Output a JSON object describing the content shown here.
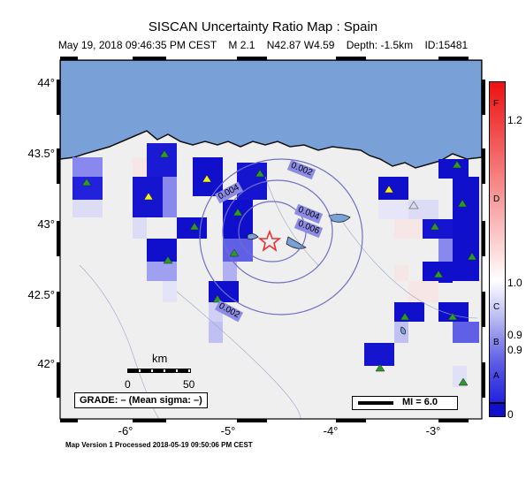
{
  "header": {
    "title": "SISCAN Uncertainty Ratio Map : Spain",
    "subtitle": "May 19, 2018 09:46:35 PM CEST    M 2.1    N42.87 W4.59    Depth: -1.5km    ID:15481"
  },
  "footer": "Map Version 1 Processed 2018-05-19 09:50:06 PM CEST",
  "axes": {
    "lat_labels": [
      "44°",
      "43.5°",
      "43°",
      "42.5°",
      "42°"
    ],
    "lon_labels": [
      "-6°",
      "-5°",
      "-4°",
      "-3°"
    ]
  },
  "contours": [
    "0.002",
    "0.004",
    "0.004",
    "0.006",
    "0.002"
  ],
  "scale_bar": {
    "unit": "km",
    "ticks": [
      "0",
      "50"
    ]
  },
  "legend": {
    "grade": "GRADE: – (Mean sigma: –)",
    "mi": "MI = 6.0"
  },
  "colorbar": {
    "values": [
      "1.2",
      "1.0",
      "0.9",
      "0.9",
      "0"
    ],
    "grades": [
      "F",
      "D",
      "C",
      "B",
      "A"
    ],
    "colors": {
      "top": "#ee1111",
      "mid": "#ffffff",
      "low": "#2222dd",
      "bottom": "#1010cc"
    }
  },
  "colors": {
    "sea": "#7aa0d8",
    "land": "#efefef",
    "epicenter": "#e83030",
    "station": "#2a9a2a",
    "station_yellow": "#f2ee22"
  }
}
